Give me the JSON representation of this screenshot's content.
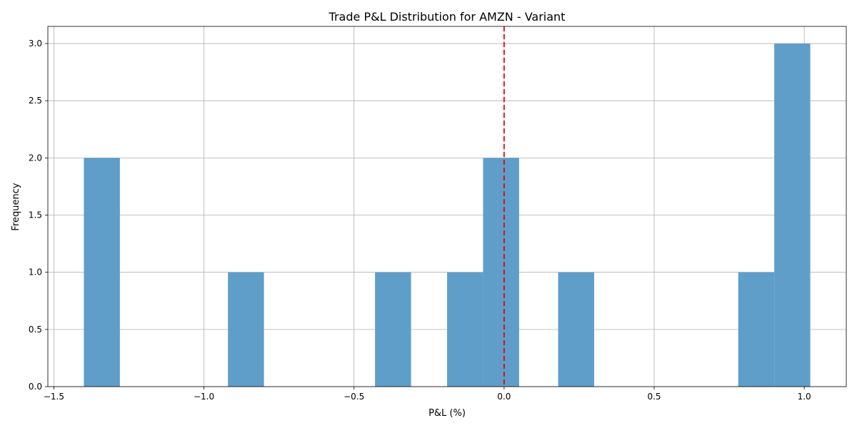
{
  "chart_data": {
    "type": "bar",
    "title": "Trade P&L Distribution for AMZN - Variant",
    "xlabel": "P&L (%)",
    "ylabel": "Frequency",
    "xlim": [
      -1.52,
      1.14
    ],
    "ylim": [
      0,
      3.15
    ],
    "grid": true,
    "bar_color": "#5f9ec9",
    "reference_line": {
      "x": 0.0,
      "color": "#e8000b",
      "style": "dashed"
    },
    "xticks": [
      {
        "value": -1.5,
        "label": "−1.5"
      },
      {
        "value": -1.0,
        "label": "−1.0"
      },
      {
        "value": -0.5,
        "label": "−0.5"
      },
      {
        "value": 0.0,
        "label": "0.0"
      },
      {
        "value": 0.5,
        "label": "0.5"
      },
      {
        "value": 1.0,
        "label": "1.0"
      }
    ],
    "yticks": [
      {
        "value": 0.0,
        "label": "0.0"
      },
      {
        "value": 0.5,
        "label": "0.5"
      },
      {
        "value": 1.0,
        "label": "1.0"
      },
      {
        "value": 1.5,
        "label": "1.5"
      },
      {
        "value": 2.0,
        "label": "2.0"
      },
      {
        "value": 2.5,
        "label": "2.5"
      },
      {
        "value": 3.0,
        "label": "3.0"
      }
    ],
    "bins": [
      {
        "x0": -1.4,
        "x1": -1.28,
        "count": 2
      },
      {
        "x0": -0.92,
        "x1": -0.8,
        "count": 1
      },
      {
        "x0": -0.43,
        "x1": -0.31,
        "count": 1
      },
      {
        "x0": -0.19,
        "x1": -0.07,
        "count": 1
      },
      {
        "x0": -0.07,
        "x1": 0.05,
        "count": 2
      },
      {
        "x0": 0.18,
        "x1": 0.3,
        "count": 1
      },
      {
        "x0": 0.78,
        "x1": 0.9,
        "count": 1
      },
      {
        "x0": 0.9,
        "x1": 1.02,
        "count": 3
      }
    ]
  }
}
